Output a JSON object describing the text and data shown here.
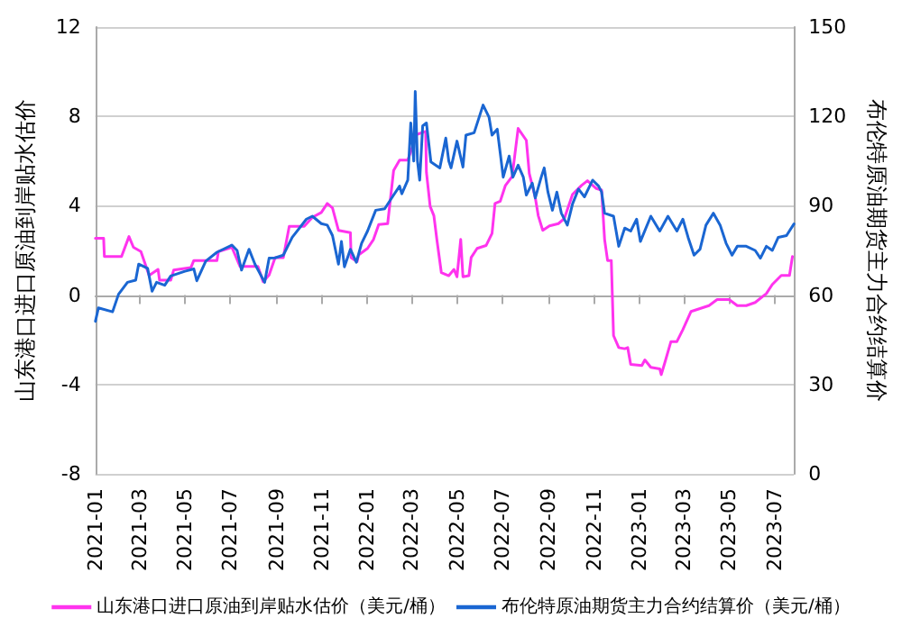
{
  "chart_data": {
    "type": "line",
    "ylabel": "山东港口进口原油到岸贴水估价",
    "y2label": "布伦特原油期货主力合约结算价",
    "xlim": [
      "2021-01-01",
      "2023-07-27"
    ],
    "xticks": [
      "2021-01",
      "2021-03",
      "2021-05",
      "2021-07",
      "2021-09",
      "2021-11",
      "2022-01",
      "2022-03",
      "2022-05",
      "2022-07",
      "2022-09",
      "2022-11",
      "2023-01",
      "2023-03",
      "2023-05",
      "2023-07"
    ],
    "ylim": [
      -8,
      12
    ],
    "yticks": [
      -8,
      -4,
      0,
      4,
      8,
      12
    ],
    "y2lim": [
      0,
      150
    ],
    "y2ticks": [
      0,
      30,
      60,
      90,
      120,
      150
    ],
    "grid": "y",
    "legend": "bottom",
    "marker": "none",
    "line_style": "solid",
    "series": [
      {
        "name": "山东港口进口原油到岸贴水估价（美元/桶）",
        "color": "#ff33ee",
        "x": [
          "2021-01-01",
          "2021-01-12",
          "2021-01-13",
          "2021-02-05",
          "2021-02-15",
          "2021-02-21",
          "2021-03-03",
          "2021-03-08",
          "2021-03-14",
          "2021-03-26",
          "2021-03-28",
          "2021-04-12",
          "2021-04-16",
          "2021-05-09",
          "2021-05-13",
          "2021-06-13",
          "2021-06-15",
          "2021-07-03",
          "2021-07-14",
          "2021-08-07",
          "2021-08-14",
          "2021-08-22",
          "2021-08-30",
          "2021-09-10",
          "2021-09-18",
          "2021-10-08",
          "2021-10-19",
          "2021-10-31",
          "2021-11-08",
          "2021-11-15",
          "2021-11-23",
          "2021-12-09",
          "2021-12-10",
          "2021-12-18",
          "2021-12-20",
          "2022-01-01",
          "2022-01-09",
          "2022-01-16",
          "2022-01-28",
          "2022-02-05",
          "2022-02-13",
          "2022-02-24",
          "2022-03-08",
          "2022-03-20",
          "2022-03-21",
          "2022-03-26",
          "2022-03-31",
          "2022-04-04",
          "2022-04-10",
          "2022-04-20",
          "2022-04-27",
          "2022-05-01",
          "2022-05-06",
          "2022-05-09",
          "2022-05-17",
          "2022-05-20",
          "2022-05-28",
          "2022-06-09",
          "2022-06-17",
          "2022-06-21",
          "2022-06-28",
          "2022-07-05",
          "2022-07-14",
          "2022-07-22",
          "2022-08-02",
          "2022-08-06",
          "2022-08-14",
          "2022-08-18",
          "2022-08-24",
          "2022-09-02",
          "2022-09-14",
          "2022-09-22",
          "2022-10-03",
          "2022-10-15",
          "2022-10-23",
          "2022-11-04",
          "2022-11-11",
          "2022-11-15",
          "2022-11-19",
          "2022-11-24",
          "2022-11-27",
          "2022-12-04",
          "2022-12-12",
          "2022-12-16",
          "2022-12-20",
          "2023-01-04",
          "2023-01-08",
          "2023-01-16",
          "2023-01-28",
          "2023-01-30",
          "2023-02-04",
          "2023-02-12",
          "2023-02-20",
          "2023-02-28",
          "2023-03-11",
          "2023-03-23",
          "2023-04-04",
          "2023-04-15",
          "2023-05-01",
          "2023-05-12",
          "2023-05-24",
          "2023-06-05",
          "2023-06-20",
          "2023-06-28",
          "2023-07-10",
          "2023-07-21",
          "2023-07-25"
        ],
        "values": [
          2.54,
          2.54,
          1.73,
          1.73,
          2.62,
          2.14,
          1.95,
          1.47,
          0.88,
          1.15,
          0.67,
          0.67,
          1.12,
          1.23,
          1.55,
          1.55,
          1.95,
          2.14,
          1.28,
          1.28,
          0.6,
          0.9,
          1.68,
          1.68,
          3.08,
          3.08,
          3.48,
          3.7,
          4.1,
          3.9,
          2.9,
          2.8,
          1.68,
          1.5,
          1.8,
          2.09,
          2.49,
          3.16,
          3.2,
          5.58,
          6.04,
          6.04,
          7.19,
          7.33,
          5.5,
          3.97,
          3.56,
          2.49,
          1.01,
          0.87,
          1.15,
          0.82,
          2.49,
          0.82,
          0.87,
          1.68,
          2.09,
          2.22,
          2.76,
          4.1,
          4.2,
          4.91,
          5.31,
          7.46,
          6.93,
          5.44,
          4.37,
          3.56,
          2.9,
          3.1,
          3.2,
          3.43,
          4.51,
          4.91,
          5.12,
          4.77,
          4.7,
          2.49,
          1.55,
          1.55,
          -1.81,
          -2.35,
          -2.4,
          -2.35,
          -3.1,
          -3.15,
          -2.9,
          -3.23,
          -3.3,
          -3.56,
          -3.0,
          -2.08,
          -2.08,
          -1.54,
          -0.73,
          -0.6,
          -0.47,
          -0.2,
          -0.2,
          -0.47,
          -0.47,
          -0.33,
          0.07,
          0.48,
          0.88,
          0.88,
          1.73
        ]
      },
      {
        "name": "布伦特原油期货主力合约结算价（美元/桶）",
        "color": "#1a66d2",
        "axis": "y2",
        "x": [
          "2021-01-01",
          "2021-01-05",
          "2021-01-24",
          "2021-02-01",
          "2021-02-13",
          "2021-02-24",
          "2021-02-28",
          "2021-03-12",
          "2021-03-18",
          "2021-03-24",
          "2021-04-04",
          "2021-04-12",
          "2021-05-01",
          "2021-05-13",
          "2021-05-17",
          "2021-05-29",
          "2021-06-13",
          "2021-07-03",
          "2021-07-10",
          "2021-07-16",
          "2021-07-26",
          "2021-08-03",
          "2021-08-16",
          "2021-08-22",
          "2021-08-30",
          "2021-09-10",
          "2021-09-22",
          "2021-10-11",
          "2021-10-19",
          "2021-10-31",
          "2021-11-08",
          "2021-11-15",
          "2021-11-23",
          "2021-11-27",
          "2021-12-01",
          "2021-12-09",
          "2021-12-17",
          "2021-12-24",
          "2022-01-01",
          "2022-01-12",
          "2022-01-24",
          "2022-02-05",
          "2022-02-13",
          "2022-02-16",
          "2022-02-24",
          "2022-02-28",
          "2022-03-04",
          "2022-03-06",
          "2022-03-09",
          "2022-03-12",
          "2022-03-16",
          "2022-03-21",
          "2022-03-27",
          "2022-04-08",
          "2022-04-16",
          "2022-04-20",
          "2022-04-23",
          "2022-05-01",
          "2022-05-09",
          "2022-05-13",
          "2022-05-24",
          "2022-06-05",
          "2022-06-13",
          "2022-06-17",
          "2022-06-24",
          "2022-06-28",
          "2022-07-02",
          "2022-07-10",
          "2022-07-15",
          "2022-07-22",
          "2022-07-29",
          "2022-08-02",
          "2022-08-10",
          "2022-08-14",
          "2022-08-22",
          "2022-08-26",
          "2022-08-31",
          "2022-09-06",
          "2022-09-12",
          "2022-09-18",
          "2022-09-26",
          "2022-10-03",
          "2022-10-11",
          "2022-10-19",
          "2022-10-30",
          "2022-11-07",
          "2022-11-11",
          "2022-11-15",
          "2022-11-27",
          "2022-12-04",
          "2022-12-12",
          "2022-12-20",
          "2022-12-28",
          "2023-01-02",
          "2023-01-16",
          "2023-01-28",
          "2023-02-08",
          "2023-02-20",
          "2023-02-28",
          "2023-03-07",
          "2023-03-15",
          "2023-03-23",
          "2023-03-31",
          "2023-04-10",
          "2023-04-19",
          "2023-04-27",
          "2023-05-05",
          "2023-05-12",
          "2023-05-24",
          "2023-06-05",
          "2023-06-12",
          "2023-06-20",
          "2023-06-28",
          "2023-07-06",
          "2023-07-17",
          "2023-07-27"
        ],
        "values": [
          51.2,
          55.7,
          54.4,
          60.3,
          64.3,
          65,
          70.4,
          69,
          61.3,
          64.3,
          63.3,
          66.4,
          68,
          68.8,
          64.8,
          71.4,
          74.4,
          76.8,
          75,
          68.4,
          75.4,
          70.4,
          64.3,
          72.4,
          72.5,
          73.4,
          79.4,
          85.5,
          86.5,
          84,
          83.5,
          80,
          70.4,
          78,
          69.5,
          75.4,
          71,
          77.4,
          81.5,
          88.5,
          89,
          93.6,
          96.6,
          94,
          98.6,
          117.8,
          105,
          128.4,
          105,
          98.6,
          116.8,
          117.8,
          104.7,
          102.7,
          112.7,
          105,
          102.7,
          111.7,
          103,
          113.7,
          114.5,
          123.8,
          119.7,
          113.7,
          115.7,
          107.7,
          99.6,
          106.7,
          99.6,
          103.6,
          99.6,
          93.6,
          97.6,
          92.6,
          99.6,
          102.7,
          94.6,
          88.5,
          94.6,
          87.5,
          83.5,
          90.6,
          95.6,
          93,
          98.6,
          96.6,
          94.6,
          87.5,
          86.5,
          76.4,
          82.5,
          81.5,
          85.5,
          78,
          86.5,
          81.5,
          86.5,
          81.5,
          85.5,
          79.4,
          73.4,
          75.4,
          83.5,
          87.5,
          83.5,
          77.4,
          73.4,
          76.4,
          76.4,
          75,
          72.4,
          76.4,
          75,
          79.4,
          80,
          83.9
        ]
      }
    ]
  }
}
